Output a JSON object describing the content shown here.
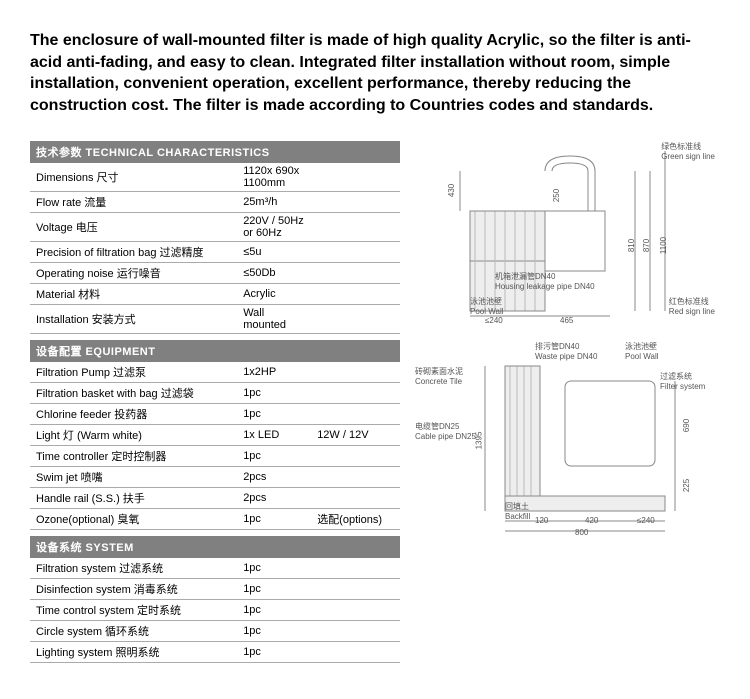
{
  "intro": "The enclosure of wall-mounted filter is made of high quality Acrylic, so the filter is anti-acid anti-fading, and easy to clean. Integrated filter installation without room, simple installation, convenient operation, excellent performance, thereby reducing the construction cost. The filter is made according to Countries codes and standards.",
  "sections": {
    "tech": {
      "header": "技术参数  TECHNICAL CHARACTERISTICS",
      "rows": [
        {
          "label": "Dimensions 尺寸",
          "v1": "1120x 690x 1100mm",
          "v2": ""
        },
        {
          "label": "Flow rate 流量",
          "v1": "25m³/h",
          "v2": ""
        },
        {
          "label": "Voltage 电压",
          "v1": "220V / 50Hz  or 60Hz",
          "v2": ""
        },
        {
          "label": "Precision of filtration bag 过滤精度",
          "v1": "≤5u",
          "v2": ""
        },
        {
          "label": "Operating noise 运行噪音",
          "v1": "≤50Db",
          "v2": ""
        },
        {
          "label": "Material 材料",
          "v1": "Acrylic",
          "v2": ""
        },
        {
          "label": "Installation 安装方式",
          "v1": "Wall mounted",
          "v2": ""
        }
      ]
    },
    "equip": {
      "header": "设备配置  EQUIPMENT",
      "rows": [
        {
          "label": "Filtration Pump 过滤泵",
          "v1": "1x2HP",
          "v2": ""
        },
        {
          "label": "Filtration basket with bag 过滤袋",
          "v1": "1pc",
          "v2": ""
        },
        {
          "label": "Chlorine feeder 投药器",
          "v1": "1pc",
          "v2": ""
        },
        {
          "label": "Light 灯 (Warm white)",
          "v1": "1x LED",
          "v2": "12W / 12V"
        },
        {
          "label": "Time controller 定时控制器",
          "v1": "1pc",
          "v2": ""
        },
        {
          "label": "Swim jet 喷嘴",
          "v1": "2pcs",
          "v2": ""
        },
        {
          "label": "Handle rail (S.S.) 扶手",
          "v1": "2pcs",
          "v2": ""
        },
        {
          "label": "Ozone(optional) 臭氧",
          "v1": "1pc",
          "v2": "选配(options)"
        }
      ]
    },
    "system": {
      "header": "设备系统  SYSTEM",
      "rows": [
        {
          "label": "Filtration system 过滤系统",
          "v1": "1pc",
          "v2": ""
        },
        {
          "label": "Disinfection system 消毒系统",
          "v1": "1pc",
          "v2": ""
        },
        {
          "label": "Time control system 定时系统",
          "v1": "1pc",
          "v2": ""
        },
        {
          "label": "Circle system 循环系统",
          "v1": "1pc",
          "v2": ""
        },
        {
          "label": "Lighting system 照明系统",
          "v1": "1pc",
          "v2": ""
        }
      ]
    }
  },
  "diagram": {
    "top": {
      "green_line": "绿色标准线",
      "green_line_en": "Green sign line",
      "red_line": "红色标准线",
      "red_line_en": "Red sign line",
      "housing_leakage": "机箱泄漏管DN40",
      "housing_leakage_en": "Housing leakage pipe DN40",
      "pool_wall": "泳池池壁",
      "pool_wall_en": "Pool Wall",
      "dim_430": "430",
      "dim_250": "250",
      "dim_810": "810",
      "dim_870": "870",
      "dim_1100": "1100",
      "dim_le240": "≤240",
      "dim_465": "465"
    },
    "bottom": {
      "concrete_tile": "砖砌素面水泥",
      "concrete_tile_en": "Concrete Tile",
      "cable_pipe": "电缆管DN25",
      "cable_pipe_en": "Cable pipe DN25",
      "waste_pipe": "排污管DN40",
      "waste_pipe_en": "Waste pipe DN40",
      "pool_wall": "泳池池壁",
      "pool_wall_en": "Pool Wall",
      "filter_system": "过滤系统",
      "filter_system_en": "Filter system",
      "backfill": "回填土",
      "backfill_en": "Backfill",
      "dim_1395": "1395",
      "dim_690": "690",
      "dim_225": "225",
      "dim_120": "120",
      "dim_420": "420",
      "dim_le240": "≤240",
      "dim_800": "800"
    },
    "colors": {
      "line": "#888888",
      "fill": "#e8e8e8",
      "text": "#555555"
    }
  }
}
